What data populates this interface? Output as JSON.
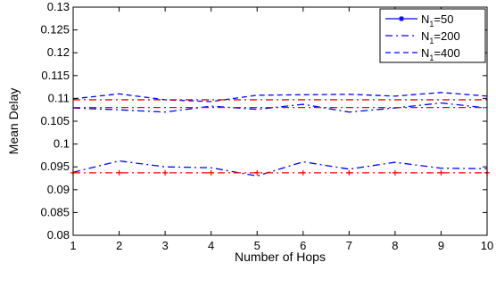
{
  "chart_data": {
    "type": "line",
    "xlabel": "Number of Hops",
    "ylabel": "Mean Delay",
    "xlim": [
      1,
      10
    ],
    "ylim": [
      0.08,
      0.13
    ],
    "x": [
      1,
      2,
      3,
      4,
      5,
      6,
      7,
      8,
      9,
      10
    ],
    "xticks": [
      "1",
      "2",
      "3",
      "4",
      "5",
      "6",
      "7",
      "8",
      "9",
      "10"
    ],
    "yticks": [
      "0.08",
      "0.085",
      "0.09",
      "0.095",
      "0.1",
      "0.105",
      "0.11",
      "0.115",
      "0.12",
      "0.125",
      "0.13"
    ],
    "grid": false,
    "legend": {
      "position": "top-right",
      "entries": [
        {
          "prefix": "N",
          "sub": "1",
          "suffix": "=50",
          "style": "solid-star",
          "color": "#0000ff"
        },
        {
          "prefix": "N",
          "sub": "1",
          "suffix": "=200",
          "style": "dashdot",
          "color": "#0000ff"
        },
        {
          "prefix": "N",
          "sub": "1",
          "suffix": "=400",
          "style": "dashed",
          "color": "#0000ff"
        }
      ]
    },
    "series": [
      {
        "key": "n50_dashdot",
        "color": "#0000ff",
        "dash": "8,4,2,4",
        "marker": "none",
        "values": [
          0.0938,
          0.0963,
          0.095,
          0.0948,
          0.093,
          0.0961,
          0.0945,
          0.096,
          0.0947,
          0.0946
        ]
      },
      {
        "key": "n50_ref",
        "color": "#ff0000",
        "dash": "8,4,2,4",
        "marker": "plus",
        "values": [
          0.0937,
          0.0937,
          0.0937,
          0.0937,
          0.0937,
          0.0937,
          0.0937,
          0.0937,
          0.0937,
          0.0937
        ]
      },
      {
        "key": "n200_dashdot",
        "color": "#0000ff",
        "dash": "8,4,2,4",
        "marker": "none",
        "values": [
          0.1079,
          0.1075,
          0.107,
          0.1083,
          0.1076,
          0.1087,
          0.107,
          0.1079,
          0.109,
          0.1079
        ]
      },
      {
        "key": "n200_ref",
        "color": "#ff0000",
        "dash": "8,4,2,4",
        "marker": "none",
        "values": [
          0.108,
          0.108,
          0.108,
          0.108,
          0.108,
          0.108,
          0.108,
          0.108,
          0.108,
          0.108
        ]
      },
      {
        "key": "n400_dashed",
        "color": "#0000ff",
        "dash": "6,4",
        "marker": "none",
        "values": [
          0.1099,
          0.111,
          0.1097,
          0.1093,
          0.1107,
          0.1108,
          0.1109,
          0.1105,
          0.1113,
          0.1105
        ]
      },
      {
        "key": "n400_ref",
        "color": "#ff0000",
        "dash": "8,4,2,4",
        "marker": "none",
        "values": [
          0.1097,
          0.1097,
          0.1097,
          0.1097,
          0.1097,
          0.1097,
          0.1097,
          0.1097,
          0.1097,
          0.1097
        ]
      }
    ]
  }
}
